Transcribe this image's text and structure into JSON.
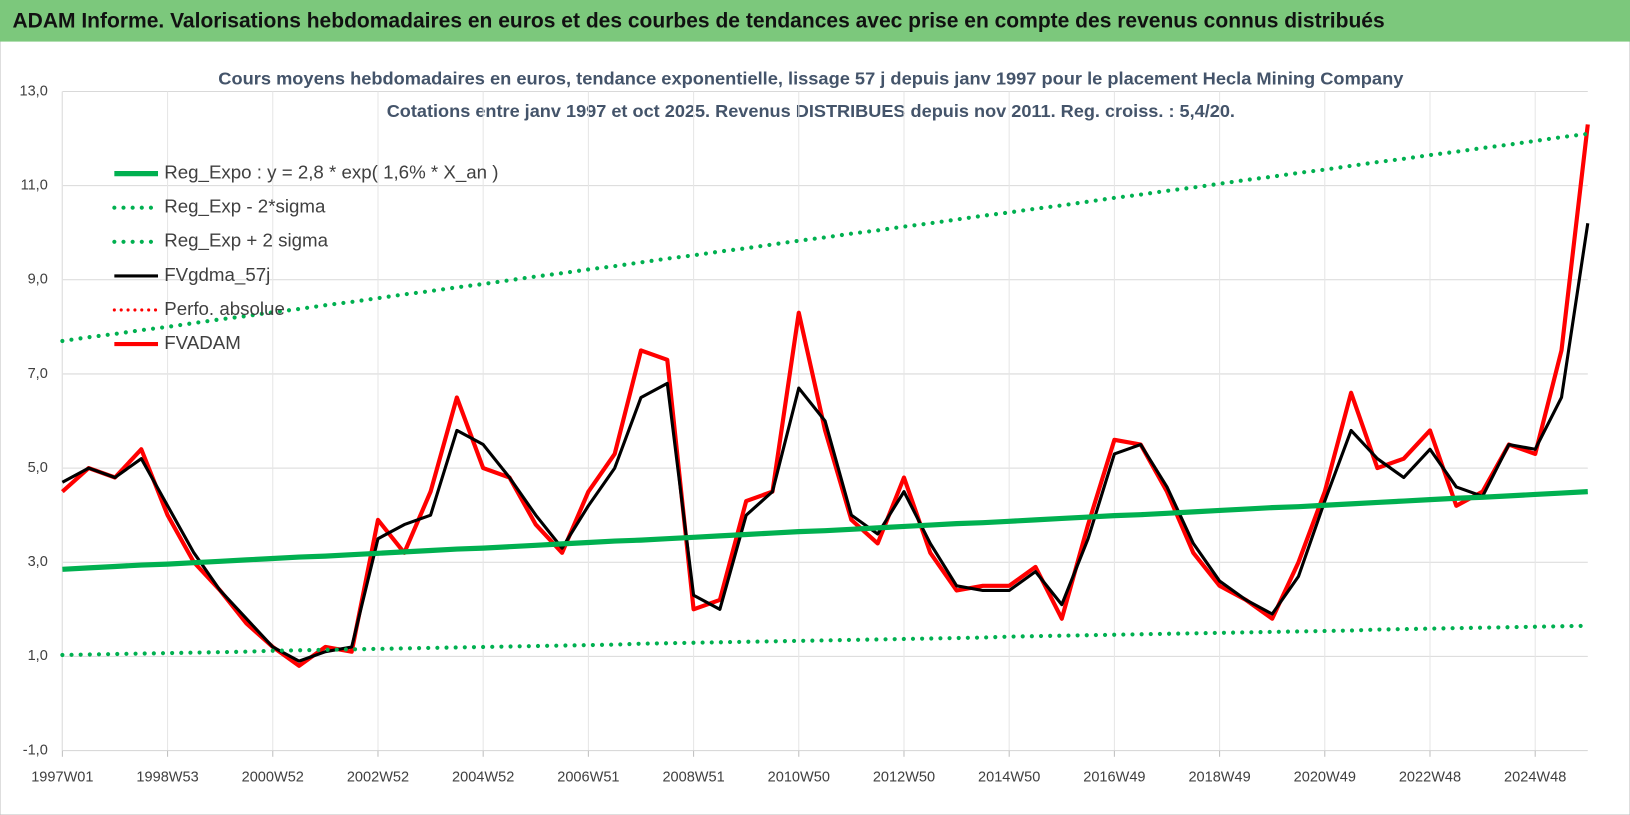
{
  "header": {
    "title": "ADAM Informe. Valorisations hebdomadaires en euros et des courbes de tendances avec prise en compte des revenus connus distribués"
  },
  "chart_data": {
    "type": "line",
    "title": "Cours moyens hebdomadaires en euros, tendance exponentielle, lissage 57 j depuis janv 1997 pour le placement Hecla Mining Company",
    "subtitle": "Cotations entre janv 1997 et oct 2025. Revenus DISTRIBUES depuis nov 2011.  Reg. croiss. : 5,4/20.",
    "categories": [
      "1997W01",
      null,
      null,
      null,
      "1998W53",
      null,
      null,
      null,
      "2000W52",
      null,
      null,
      null,
      "2002W52",
      null,
      null,
      null,
      "2004W52",
      null,
      null,
      null,
      "2006W51",
      null,
      null,
      null,
      "2008W51",
      null,
      null,
      null,
      "2010W50",
      null,
      null,
      null,
      "2012W50",
      null,
      null,
      null,
      "2014W50",
      null,
      null,
      null,
      "2016W49",
      null,
      null,
      null,
      "2018W49",
      null,
      null,
      null,
      "2020W49",
      null,
      null,
      null,
      "2022W48",
      null,
      null,
      null,
      "2024W48",
      null,
      null
    ],
    "series": [
      {
        "name": "Reg_Expo : y = 2,8 * exp( 1,6% *  X_an )",
        "color": "#00b050",
        "style": "solid",
        "width": 5,
        "values": [
          2.85,
          2.88,
          2.91,
          2.94,
          2.96,
          2.99,
          3.02,
          3.05,
          3.08,
          3.11,
          3.13,
          3.16,
          3.19,
          3.22,
          3.25,
          3.28,
          3.3,
          3.33,
          3.36,
          3.39,
          3.42,
          3.45,
          3.47,
          3.5,
          3.53,
          3.56,
          3.59,
          3.62,
          3.65,
          3.67,
          3.7,
          3.73,
          3.76,
          3.79,
          3.82,
          3.84,
          3.87,
          3.9,
          3.93,
          3.96,
          3.99,
          4.01,
          4.04,
          4.07,
          4.1,
          4.13,
          4.16,
          4.18,
          4.21,
          4.24,
          4.27,
          4.3,
          4.33,
          4.36,
          4.38,
          4.41,
          4.44,
          4.47,
          4.5
        ]
      },
      {
        "name": "Reg_Exp - 2*sigma",
        "color": "#00b050",
        "style": "dotted",
        "width": 4,
        "values": [
          1.03,
          1.04,
          1.05,
          1.06,
          1.07,
          1.08,
          1.09,
          1.1,
          1.12,
          1.13,
          1.14,
          1.15,
          1.16,
          1.17,
          1.18,
          1.19,
          1.2,
          1.21,
          1.22,
          1.23,
          1.24,
          1.25,
          1.27,
          1.28,
          1.29,
          1.3,
          1.31,
          1.32,
          1.33,
          1.34,
          1.35,
          1.36,
          1.37,
          1.38,
          1.39,
          1.4,
          1.42,
          1.43,
          1.44,
          1.45,
          1.46,
          1.47,
          1.48,
          1.49,
          1.5,
          1.51,
          1.52,
          1.53,
          1.54,
          1.55,
          1.57,
          1.58,
          1.59,
          1.6,
          1.61,
          1.62,
          1.63,
          1.64,
          1.65
        ]
      },
      {
        "name": "Reg_Exp + 2 sigma",
        "color": "#00b050",
        "style": "dotted",
        "width": 4,
        "values": [
          7.7,
          7.78,
          7.85,
          7.93,
          8.0,
          8.08,
          8.16,
          8.23,
          8.31,
          8.38,
          8.46,
          8.53,
          8.61,
          8.69,
          8.76,
          8.84,
          8.91,
          8.99,
          9.07,
          9.14,
          9.22,
          9.29,
          9.37,
          9.45,
          9.52,
          9.6,
          9.67,
          9.75,
          9.83,
          9.9,
          9.98,
          10.05,
          10.13,
          10.2,
          10.28,
          10.36,
          10.43,
          10.51,
          10.58,
          10.66,
          10.74,
          10.81,
          10.89,
          10.96,
          11.04,
          11.12,
          11.19,
          11.27,
          11.34,
          11.42,
          11.5,
          11.57,
          11.65,
          11.72,
          11.8,
          11.87,
          11.95,
          12.03,
          12.1
        ]
      },
      {
        "name": "FVgdma_57j",
        "color": "#000000",
        "style": "solid",
        "width": 3,
        "values": [
          4.7,
          5.0,
          4.8,
          5.2,
          4.2,
          3.2,
          2.4,
          1.8,
          1.2,
          0.9,
          1.1,
          1.2,
          3.5,
          3.8,
          4.0,
          5.8,
          5.5,
          4.8,
          4.0,
          3.3,
          4.2,
          5.0,
          6.5,
          6.8,
          2.3,
          2.0,
          4.0,
          4.5,
          6.7,
          6.0,
          4.0,
          3.6,
          4.5,
          3.4,
          2.5,
          2.4,
          2.4,
          2.8,
          2.1,
          3.5,
          5.3,
          5.5,
          4.6,
          3.4,
          2.6,
          2.2,
          1.9,
          2.7,
          4.3,
          5.8,
          5.2,
          4.8,
          5.4,
          4.6,
          4.4,
          5.5,
          5.4,
          6.5,
          10.2
        ]
      },
      {
        "name": "Perfo. absolue",
        "color": "#ff0000",
        "style": "dotted",
        "width": 3,
        "values": [
          null,
          null,
          null,
          null,
          null,
          null,
          null,
          null,
          null,
          null,
          null,
          null,
          null,
          null,
          null,
          null,
          null,
          null,
          null,
          null,
          null,
          null,
          null,
          null,
          null,
          null,
          null,
          null,
          null,
          null,
          null,
          null,
          null,
          null,
          null,
          null,
          null,
          null,
          null,
          null,
          null,
          null,
          null,
          null,
          null,
          null,
          null,
          null,
          null,
          null,
          null,
          null,
          null,
          null,
          null,
          null,
          null,
          null,
          null
        ]
      },
      {
        "name": "FVADAM",
        "color": "#ff0000",
        "style": "solid",
        "width": 4,
        "values": [
          4.5,
          5.0,
          4.8,
          5.4,
          4.0,
          3.0,
          2.4,
          1.7,
          1.2,
          0.8,
          1.2,
          1.1,
          3.9,
          3.2,
          4.5,
          6.5,
          5.0,
          4.8,
          3.8,
          3.2,
          4.5,
          5.3,
          7.5,
          7.3,
          2.0,
          2.2,
          4.3,
          4.5,
          8.3,
          5.8,
          3.9,
          3.4,
          4.8,
          3.2,
          2.4,
          2.5,
          2.5,
          2.9,
          1.8,
          3.8,
          5.6,
          5.5,
          4.5,
          3.2,
          2.5,
          2.2,
          1.8,
          3.0,
          4.5,
          6.6,
          5.0,
          5.2,
          5.8,
          4.2,
          4.5,
          5.5,
          5.3,
          7.5,
          12.3
        ]
      }
    ],
    "ylim": [
      -1,
      13
    ],
    "yticks": [
      {
        "value": -1,
        "label": "-1,0"
      },
      {
        "value": 1,
        "label": "1,0"
      },
      {
        "value": 3,
        "label": "3,0"
      },
      {
        "value": 5,
        "label": "5,0"
      },
      {
        "value": 7,
        "label": "7,0"
      },
      {
        "value": 9,
        "label": "9,0"
      },
      {
        "value": 11,
        "label": "11,0"
      },
      {
        "value": 13,
        "label": "13,0"
      }
    ],
    "grid": true,
    "legend": "top-left"
  }
}
